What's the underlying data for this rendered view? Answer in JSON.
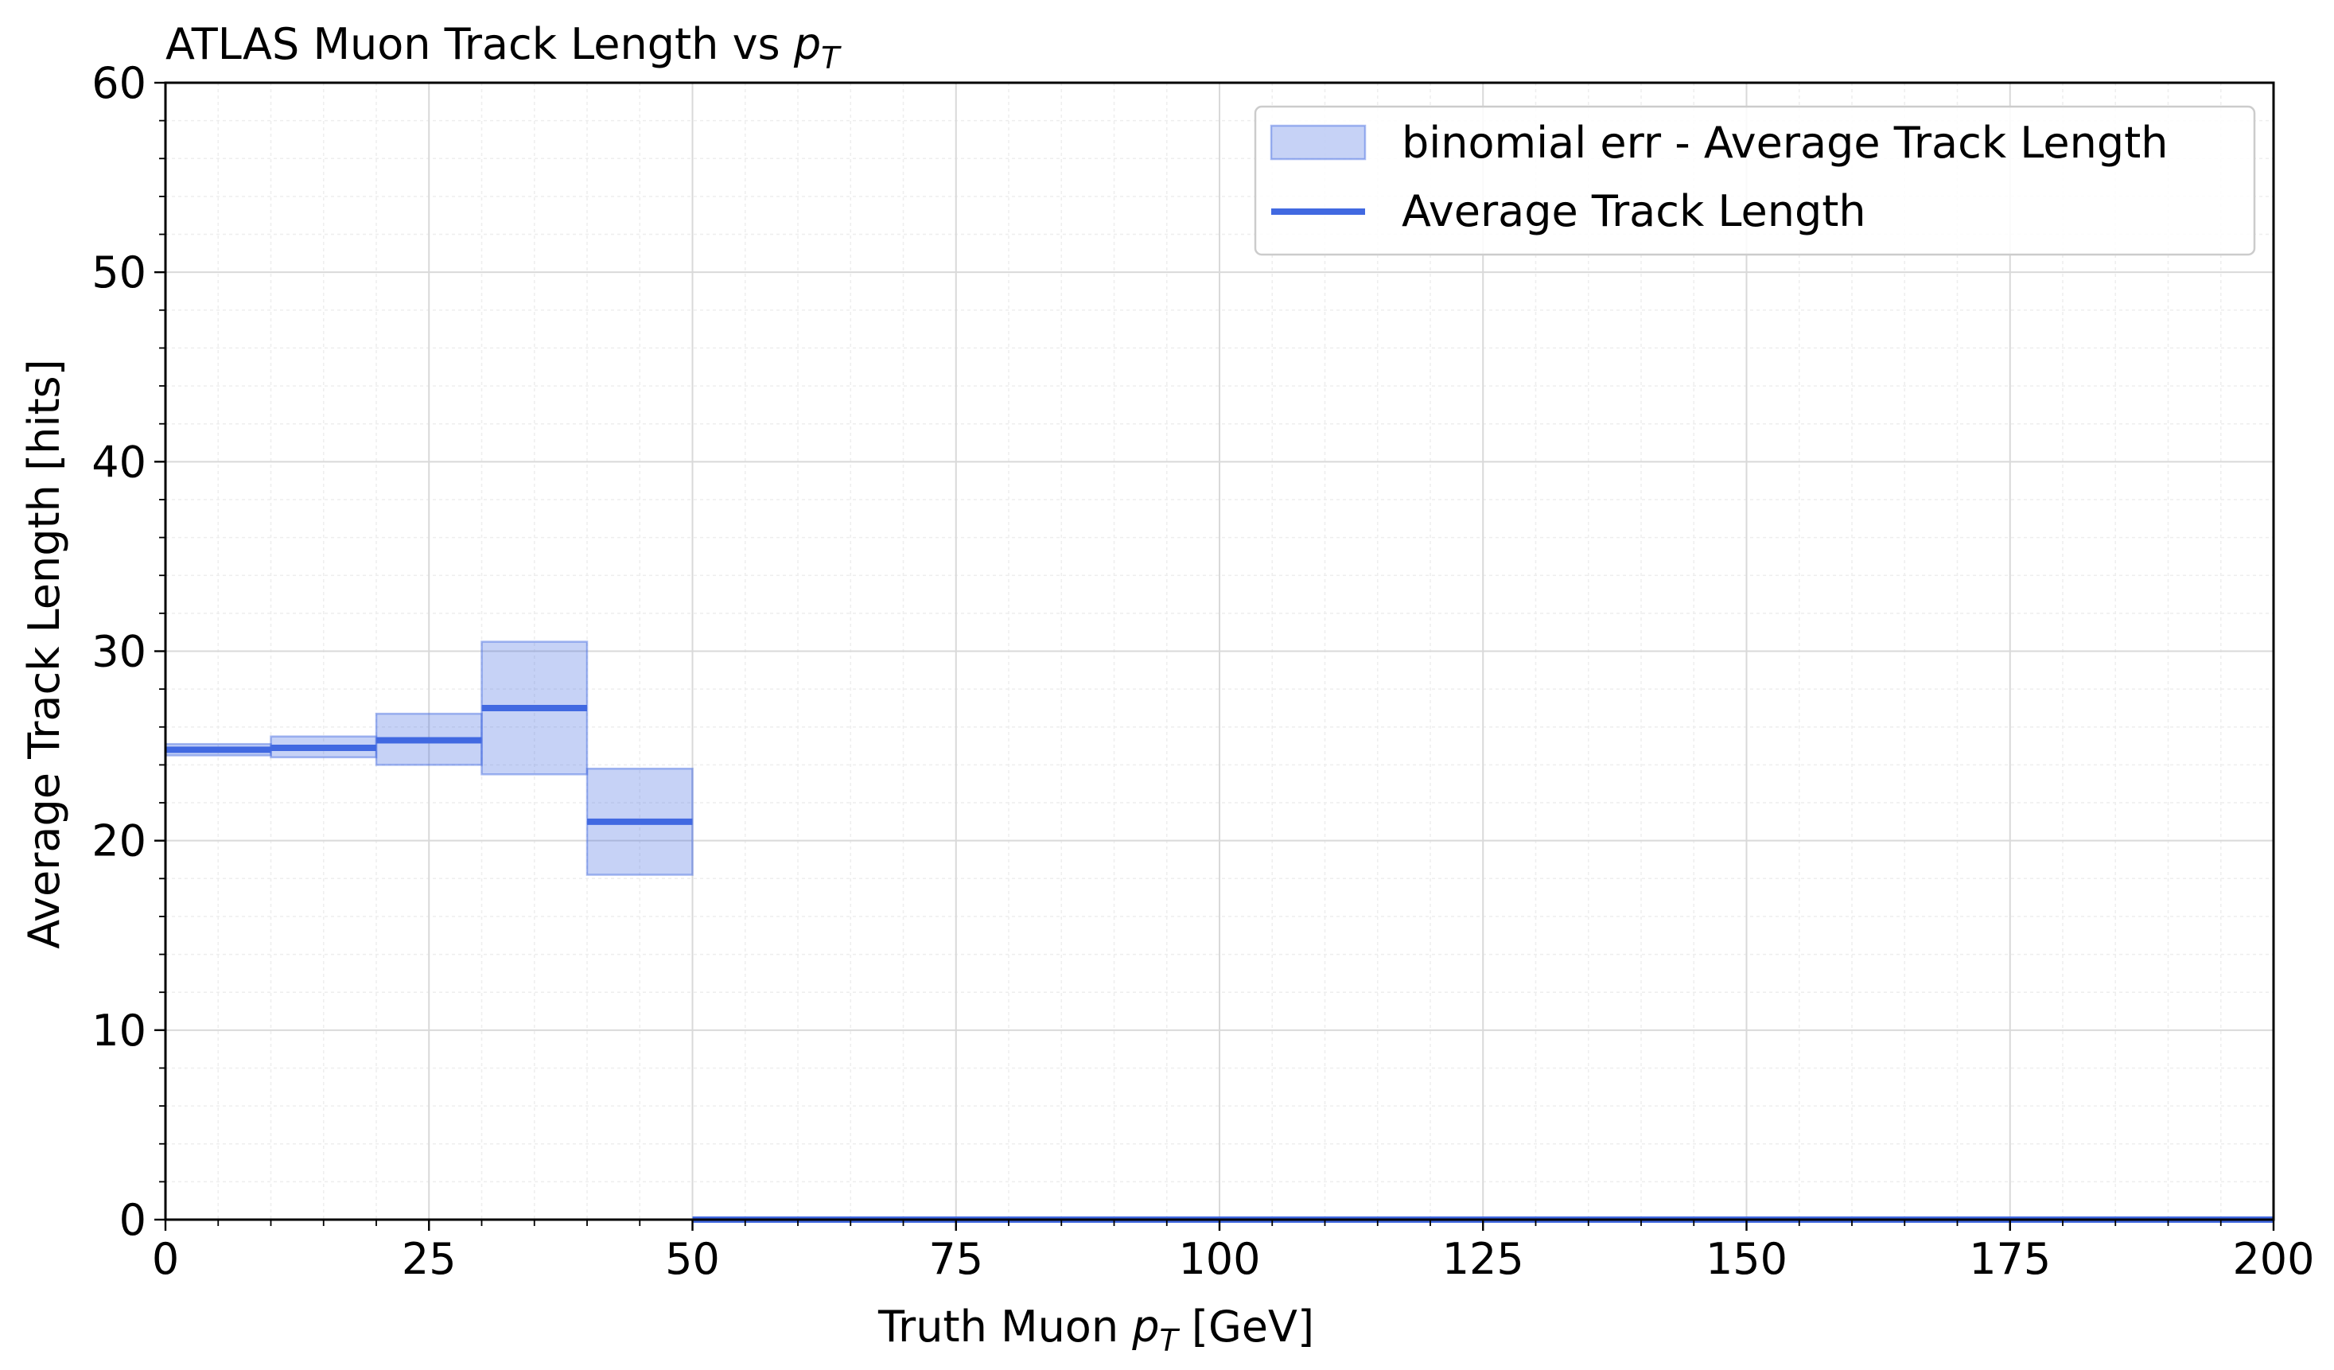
{
  "chart_data": {
    "type": "bar",
    "title": "ATLAS Muon Track Length vs ",
    "title_math": {
      "base": "p",
      "sub": "T"
    },
    "xlabel": "Truth Muon ",
    "xlabel_math": {
      "base": "p",
      "sub": "T"
    },
    "xlabel_unit": " [GeV]",
    "ylabel": "Average Track Length [hits]",
    "xlim": [
      0,
      200
    ],
    "ylim": [
      0,
      60
    ],
    "xticks": [
      0,
      25,
      50,
      75,
      100,
      125,
      150,
      175,
      200
    ],
    "yticks": [
      0,
      10,
      20,
      30,
      40,
      50,
      60
    ],
    "grid": true,
    "legend_position": "top-right",
    "bin_edges": [
      0,
      10,
      20,
      30,
      40,
      50,
      60,
      70,
      80,
      90,
      100,
      110,
      120,
      130,
      140,
      150,
      160,
      170,
      180,
      190,
      200
    ],
    "series": [
      {
        "name": "Average Track Length",
        "kind": "step",
        "color": "#4169e1",
        "values": [
          24.8,
          24.9,
          25.3,
          27.0,
          21.0,
          0,
          0,
          0,
          0,
          0,
          0,
          0,
          0,
          0,
          0,
          0,
          0,
          0,
          0,
          0
        ]
      },
      {
        "name": "binomial err - Average Track Length",
        "kind": "band",
        "color": "#4169e1",
        "fill_opacity": 0.3,
        "lower": [
          24.5,
          24.4,
          24.0,
          23.5,
          18.2,
          0,
          0,
          0,
          0,
          0,
          0,
          0,
          0,
          0,
          0,
          0,
          0,
          0,
          0,
          0
        ],
        "upper": [
          25.1,
          25.5,
          26.7,
          30.5,
          23.8,
          0,
          0,
          0,
          0,
          0,
          0,
          0,
          0,
          0,
          0,
          0,
          0,
          0,
          0,
          0
        ]
      }
    ]
  }
}
